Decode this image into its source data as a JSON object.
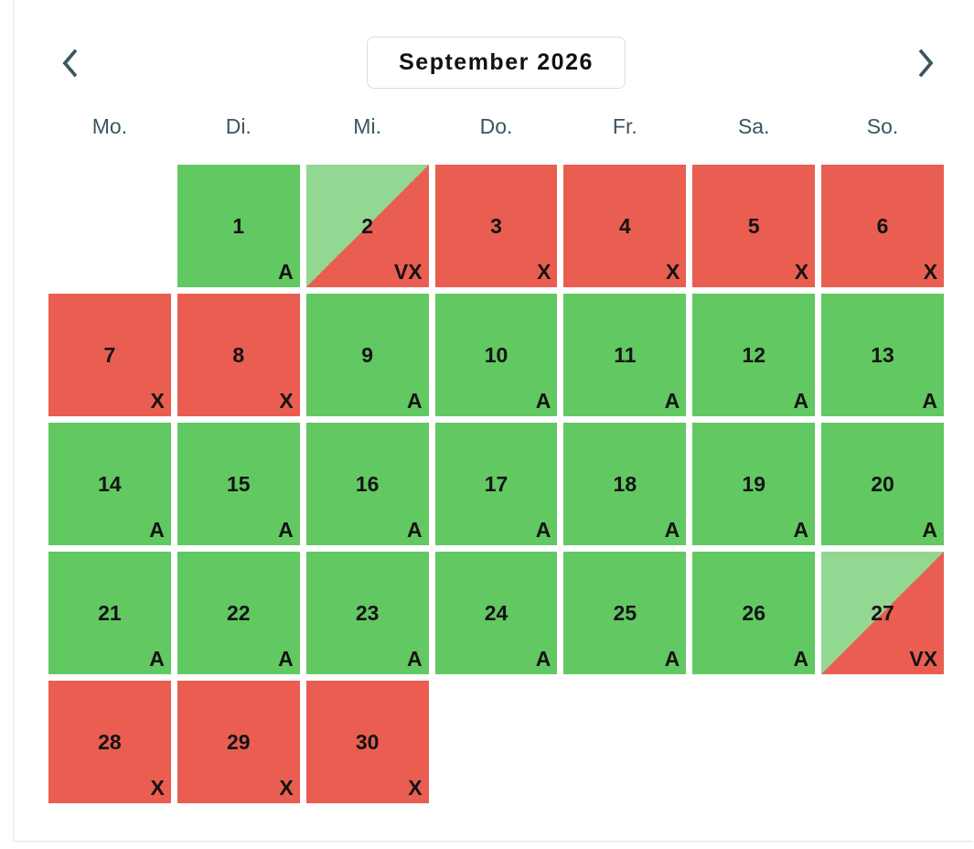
{
  "header": {
    "title": "September 2026",
    "prev_icon": "chevron-left",
    "next_icon": "chevron-right"
  },
  "weekdays": [
    "Mo.",
    "Di.",
    "Mi.",
    "Do.",
    "Fr.",
    "Sa.",
    "So."
  ],
  "status_markers": {
    "available": "A",
    "unavailable": "X",
    "partial": "VX"
  },
  "colors": {
    "available": "#62c862",
    "unavailable": "#e95e51",
    "partial": "#92d892",
    "accent": "#3a5560"
  },
  "weeks": [
    [
      null,
      {
        "day": "1",
        "status": "available",
        "marker": "A"
      },
      {
        "day": "2",
        "status": "partial",
        "marker": "VX"
      },
      {
        "day": "3",
        "status": "unavailable",
        "marker": "X"
      },
      {
        "day": "4",
        "status": "unavailable",
        "marker": "X"
      },
      {
        "day": "5",
        "status": "unavailable",
        "marker": "X"
      },
      {
        "day": "6",
        "status": "unavailable",
        "marker": "X"
      }
    ],
    [
      {
        "day": "7",
        "status": "unavailable",
        "marker": "X"
      },
      {
        "day": "8",
        "status": "unavailable",
        "marker": "X"
      },
      {
        "day": "9",
        "status": "available",
        "marker": "A"
      },
      {
        "day": "10",
        "status": "available",
        "marker": "A"
      },
      {
        "day": "11",
        "status": "available",
        "marker": "A"
      },
      {
        "day": "12",
        "status": "available",
        "marker": "A"
      },
      {
        "day": "13",
        "status": "available",
        "marker": "A"
      }
    ],
    [
      {
        "day": "14",
        "status": "available",
        "marker": "A"
      },
      {
        "day": "15",
        "status": "available",
        "marker": "A"
      },
      {
        "day": "16",
        "status": "available",
        "marker": "A"
      },
      {
        "day": "17",
        "status": "available",
        "marker": "A"
      },
      {
        "day": "18",
        "status": "available",
        "marker": "A"
      },
      {
        "day": "19",
        "status": "available",
        "marker": "A"
      },
      {
        "day": "20",
        "status": "available",
        "marker": "A"
      }
    ],
    [
      {
        "day": "21",
        "status": "available",
        "marker": "A"
      },
      {
        "day": "22",
        "status": "available",
        "marker": "A"
      },
      {
        "day": "23",
        "status": "available",
        "marker": "A"
      },
      {
        "day": "24",
        "status": "available",
        "marker": "A"
      },
      {
        "day": "25",
        "status": "available",
        "marker": "A"
      },
      {
        "day": "26",
        "status": "available",
        "marker": "A"
      },
      {
        "day": "27",
        "status": "partial",
        "marker": "VX"
      }
    ],
    [
      {
        "day": "28",
        "status": "unavailable",
        "marker": "X"
      },
      {
        "day": "29",
        "status": "unavailable",
        "marker": "X"
      },
      {
        "day": "30",
        "status": "unavailable",
        "marker": "X"
      },
      null,
      null,
      null,
      null
    ]
  ]
}
